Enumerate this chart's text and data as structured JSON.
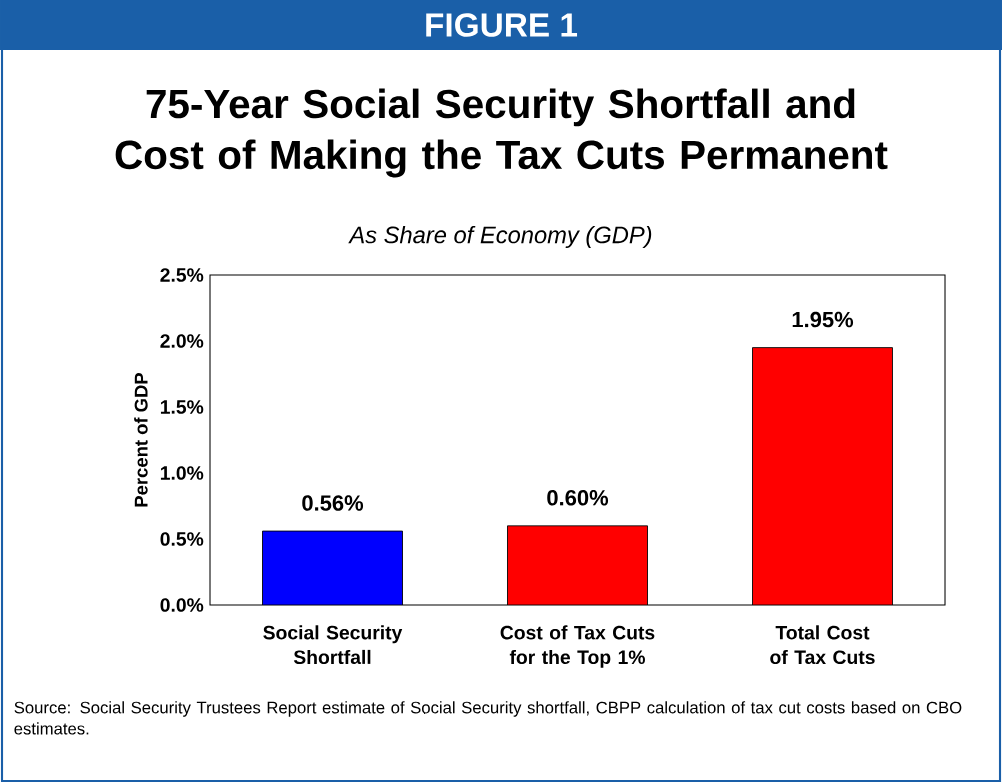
{
  "chart_data": {
    "type": "bar",
    "title": "75-Year Social Security Shortfall and Cost of Making the Tax Cuts Permanent",
    "subtitle": "As Share of Economy (GDP)",
    "ylabel": "Percent of GDP",
    "categories": [
      "Social Security Shortfall",
      "Cost of Tax Cuts for the Top 1%",
      "Total Cost of Tax Cuts"
    ],
    "values": [
      0.56,
      0.6,
      1.95
    ],
    "colors": [
      "#0000ff",
      "#ff0000",
      "#ff0000"
    ],
    "value_labels": [
      "0.56%",
      "0.60%",
      "1.95%"
    ],
    "ylim": [
      0,
      2.5
    ],
    "yticks": [
      {
        "value": 0,
        "label": "0.0%"
      },
      {
        "value": 0.5,
        "label": "0.5%"
      },
      {
        "value": 1,
        "label": "1.0%"
      },
      {
        "value": 1.5,
        "label": "1.5%"
      },
      {
        "value": 2,
        "label": "2.0%"
      },
      {
        "value": 2.5,
        "label": "2.5%"
      }
    ],
    "grid": false,
    "annotations": [
      "FIGURE 1",
      "Source: Social Security Trustees Report estimate of Social Security shortfall, CBPP calculation of tax cut costs based on CBO estimates."
    ]
  }
}
